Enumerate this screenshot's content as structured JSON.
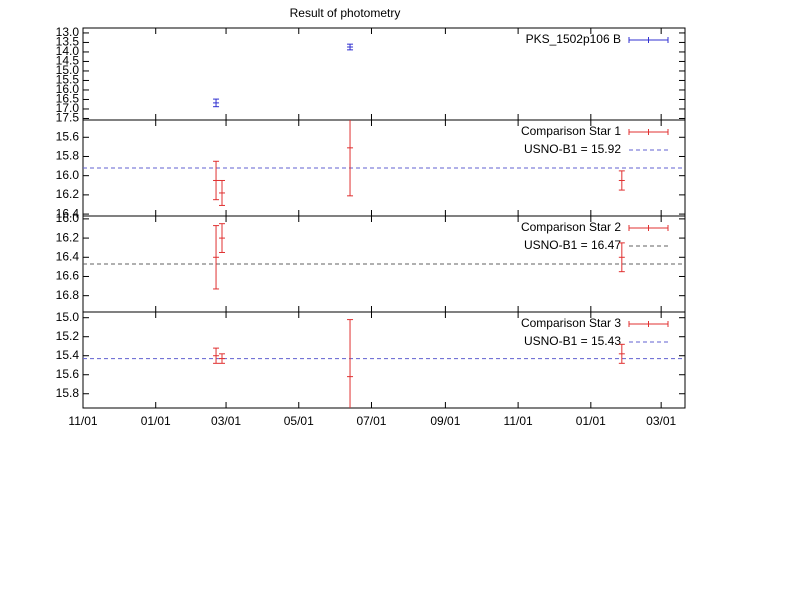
{
  "chart_data": [
    {
      "type": "errorbar",
      "title": "Result of photometry",
      "x": [
        111.6,
        224
      ],
      "xlim": [
        0,
        505
      ],
      "ylim": [
        12.74,
        17.58
      ],
      "yticks": [
        {
          "value": 13,
          "label": "13.0"
        },
        13.5,
        {
          "value": 14,
          "label": "14.0"
        },
        14.5,
        {
          "value": 15,
          "label": "15.0"
        },
        15.5,
        {
          "value": 16,
          "label": "16.0"
        },
        16.5,
        {
          "value": 17,
          "label": "17.0"
        },
        17.5
      ],
      "series": [
        {
          "name": "PKS_1502p106 B",
          "color": "#3030d0",
          "values": [
            16.68,
            13.74
          ],
          "errors": [
            0.2,
            0.15
          ]
        }
      ]
    },
    {
      "type": "errorbar",
      "x": [
        111.6,
        116.6,
        224,
        452
      ],
      "xlim": [
        0,
        505
      ],
      "ylim": [
        15.42,
        16.42
      ],
      "yticks": [
        15.6,
        15.8,
        {
          "value": 16,
          "label": "16.0"
        },
        16.2,
        16.4
      ],
      "series": [
        {
          "name": "Comparison Star 1",
          "color": "#e03030",
          "values": [
            16.05,
            16.18,
            15.71,
            16.05
          ],
          "errors": [
            0.2,
            0.13,
            0.5,
            0.1
          ]
        }
      ],
      "reference": {
        "label": "USNO-B1 = 15.92",
        "value": 15.92,
        "color": "#6060d0"
      }
    },
    {
      "type": "errorbar",
      "x": [
        111.6,
        116.6,
        452
      ],
      "xlim": [
        0,
        505
      ],
      "ylim": [
        15.97,
        16.97
      ],
      "yticks": [
        {
          "value": 16,
          "label": "16.0"
        },
        16.2,
        16.4,
        16.6,
        16.8
      ],
      "series": [
        {
          "name": "Comparison Star 2",
          "color": "#e03030",
          "values": [
            16.4,
            16.2,
            16.4
          ],
          "errors": [
            0.33,
            0.15,
            0.15
          ]
        }
      ],
      "reference": {
        "label": "USNO-B1 = 16.47",
        "value": 16.47,
        "color": "#606060"
      }
    },
    {
      "type": "errorbar",
      "x": [
        111.6,
        116.6,
        224,
        452
      ],
      "xlim": [
        0,
        505
      ],
      "xticks": [
        {
          "value": 0,
          "label": "11/01"
        },
        {
          "value": 61,
          "label": "01/01"
        },
        {
          "value": 120,
          "label": "03/01"
        },
        {
          "value": 181,
          "label": "05/01"
        },
        {
          "value": 242,
          "label": "07/01"
        },
        {
          "value": 304,
          "label": "09/01"
        },
        {
          "value": 365,
          "label": "11/01"
        },
        {
          "value": 426,
          "label": "01/01"
        },
        {
          "value": 485,
          "label": "03/01"
        }
      ],
      "ylim": [
        14.94,
        15.95
      ],
      "yticks": [
        {
          "value": 15,
          "label": "15.0"
        },
        15.2,
        15.4,
        15.6,
        15.8
      ],
      "series": [
        {
          "name": "Comparison Star 3",
          "color": "#e03030",
          "values": [
            15.4,
            15.43,
            15.62,
            15.38
          ],
          "errors": [
            0.08,
            0.05,
            0.6,
            0.1
          ]
        }
      ],
      "reference": {
        "label": "USNO-B1 = 15.43",
        "value": 15.43,
        "color": "#6060d0"
      }
    }
  ]
}
